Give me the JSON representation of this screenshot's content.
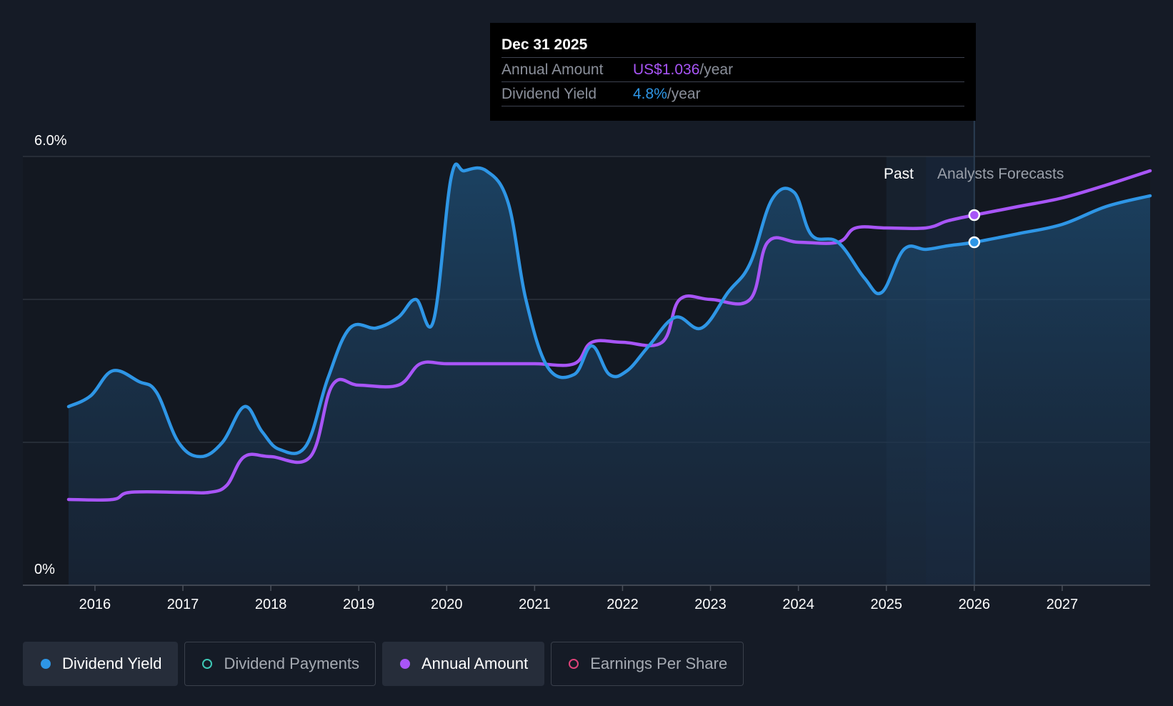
{
  "tooltip": {
    "date": "Dec 31 2025",
    "annual_label": "Annual Amount",
    "annual_value": "US$1.036",
    "annual_unit": "/year",
    "yield_label": "Dividend Yield",
    "yield_value": "4.8%",
    "yield_unit": "/year"
  },
  "legend": [
    {
      "label": "Dividend Yield",
      "color": "#2e96e6",
      "active": true,
      "filled": true
    },
    {
      "label": "Dividend Payments",
      "color": "#3ec9b6",
      "active": false,
      "filled": false
    },
    {
      "label": "Annual Amount",
      "color": "#a855f7",
      "active": true,
      "filled": true
    },
    {
      "label": "Earnings Per Share",
      "color": "#e0437a",
      "active": false,
      "filled": false
    }
  ],
  "colors": {
    "background": "#151b26",
    "yield_line": "#2e96e6",
    "annual_line": "#a855f7",
    "grid": "#3a404b"
  },
  "chart_data": {
    "type": "line",
    "y_tick_labels": [
      "6.0%",
      "0%"
    ],
    "ylim": [
      0,
      6.0
    ],
    "x_tick_labels": [
      "2016",
      "2017",
      "2018",
      "2019",
      "2020",
      "2021",
      "2022",
      "2023",
      "2024",
      "2025",
      "2026",
      "2027"
    ],
    "xlim": [
      2015.7,
      2028.0
    ],
    "grid": true,
    "region_labels": {
      "past": "Past",
      "forecast": "Analysts Forecasts"
    },
    "past_region": [
      2025.0,
      2025.45
    ],
    "forecast_region": [
      2025.45,
      2028.0
    ],
    "cursor_x": 2026.0,
    "series": [
      {
        "name": "Dividend Yield",
        "x": [
          2015.7,
          2015.95,
          2016.2,
          2016.5,
          2016.7,
          2016.95,
          2017.2,
          2017.45,
          2017.7,
          2017.9,
          2018.1,
          2018.4,
          2018.65,
          2018.9,
          2019.2,
          2019.45,
          2019.65,
          2019.85,
          2020.05,
          2020.2,
          2020.45,
          2020.7,
          2020.9,
          2021.15,
          2021.45,
          2021.65,
          2021.85,
          2022.05,
          2022.3,
          2022.6,
          2022.9,
          2023.2,
          2023.45,
          2023.7,
          2023.95,
          2024.15,
          2024.45,
          2024.75,
          2024.95,
          2025.2,
          2025.45,
          2025.7,
          2026.0,
          2026.5,
          2027.0,
          2027.5,
          2028.0
        ],
        "values": [
          2.5,
          2.65,
          3.0,
          2.85,
          2.7,
          2.0,
          1.8,
          2.0,
          2.5,
          2.15,
          1.9,
          1.95,
          2.9,
          3.6,
          3.6,
          3.75,
          4.0,
          3.7,
          5.7,
          5.8,
          5.8,
          5.35,
          4.0,
          3.05,
          2.95,
          3.35,
          2.95,
          3.0,
          3.35,
          3.75,
          3.6,
          4.1,
          4.5,
          5.4,
          5.5,
          4.9,
          4.8,
          4.3,
          4.1,
          4.7,
          4.7,
          4.75,
          4.8,
          4.92,
          5.05,
          5.3,
          5.45
        ]
      },
      {
        "name": "Annual Amount",
        "x": [
          2015.7,
          2016.2,
          2016.4,
          2017.0,
          2017.3,
          2017.5,
          2017.7,
          2018.0,
          2018.45,
          2018.7,
          2019.0,
          2019.45,
          2019.7,
          2020.0,
          2020.5,
          2021.0,
          2021.45,
          2021.65,
          2022.0,
          2022.45,
          2022.65,
          2023.0,
          2023.45,
          2023.65,
          2024.0,
          2024.45,
          2024.65,
          2025.0,
          2025.45,
          2025.7,
          2026.0,
          2026.5,
          2027.0,
          2027.5,
          2028.0
        ],
        "values": [
          1.2,
          1.2,
          1.3,
          1.3,
          1.3,
          1.4,
          1.8,
          1.8,
          1.8,
          2.8,
          2.8,
          2.8,
          3.1,
          3.1,
          3.1,
          3.1,
          3.1,
          3.4,
          3.4,
          3.4,
          4.0,
          4.0,
          4.0,
          4.8,
          4.8,
          4.8,
          5.0,
          5.0,
          5.0,
          5.1,
          5.18,
          5.3,
          5.42,
          5.6,
          5.8
        ]
      }
    ]
  }
}
